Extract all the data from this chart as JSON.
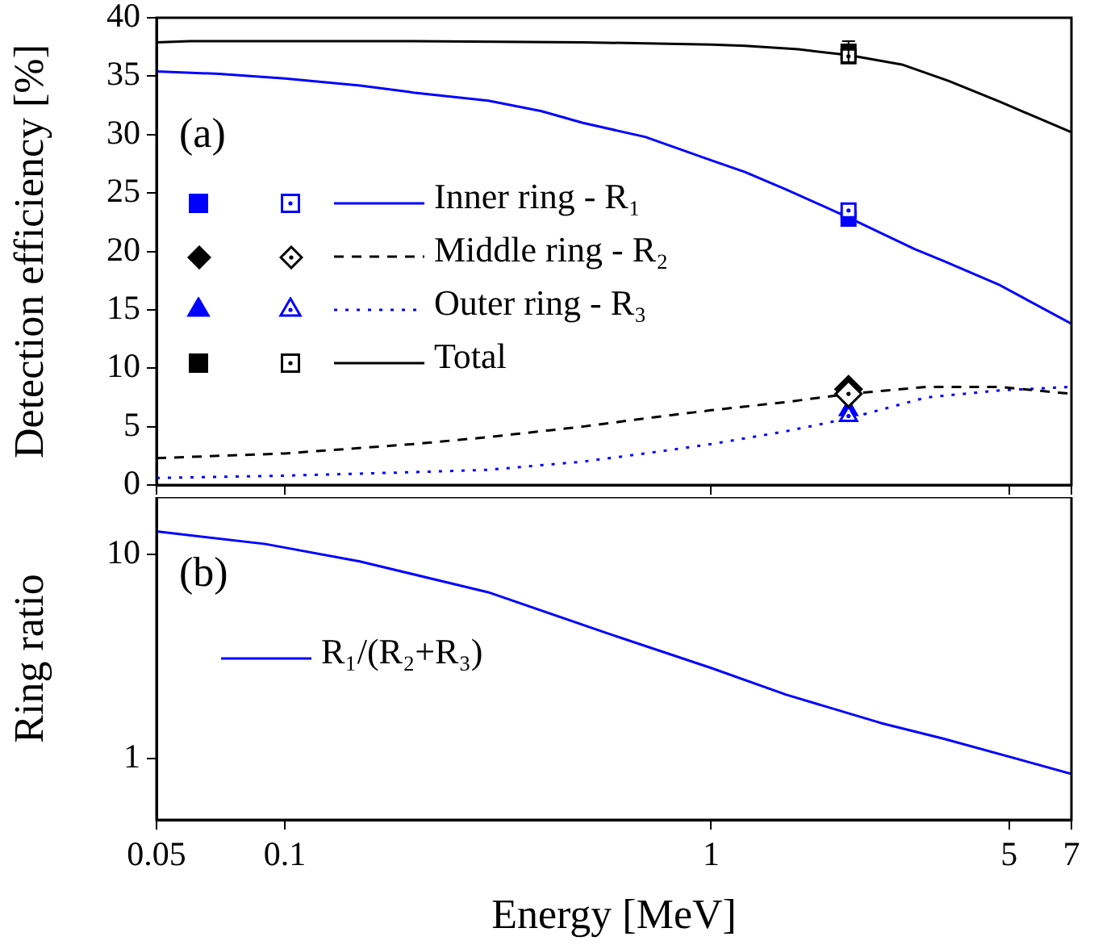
{
  "chart_data": [
    {
      "type": "line",
      "ylabel": "Detection efficiency [%]",
      "xlim": [
        0.05,
        7
      ],
      "xticks": [
        0.05,
        0.1,
        1,
        5,
        7
      ],
      "ylim": [
        0,
        40
      ],
      "yticks": [
        0,
        5,
        10,
        15,
        20,
        25,
        30,
        35,
        40
      ],
      "log": "x",
      "tick_labels": "y",
      "legend": "left",
      "annotations": [
        "(a)"
      ],
      "series": [
        {
          "name": "Inner ring - R₁",
          "type": "line",
          "color": "#0000ff",
          "line_style": "solid",
          "marker": "none",
          "x": [
            0.05,
            0.07,
            0.1,
            0.15,
            0.2,
            0.3,
            0.4,
            0.5,
            0.7,
            1,
            1.2,
            1.5,
            2.1,
            3,
            3.5,
            4.76,
            7
          ],
          "values": [
            35.4,
            35.2,
            34.8,
            34.2,
            33.6,
            32.9,
            32.0,
            31.0,
            29.8,
            27.8,
            26.8,
            25.3,
            22.9,
            20.2,
            19.2,
            17.1,
            13.8
          ]
        },
        {
          "name": "Middle ring - R₂",
          "type": "line",
          "color": "#000000",
          "line_style": "dashed",
          "marker": "none",
          "x": [
            0.05,
            0.1,
            0.2,
            0.3,
            0.5,
            0.7,
            1,
            1.5,
            2.1,
            3.2,
            4.76,
            7
          ],
          "values": [
            2.3,
            2.7,
            3.5,
            4.1,
            5.0,
            5.7,
            6.4,
            7.1,
            7.8,
            8.4,
            8.4,
            7.8
          ]
        },
        {
          "name": "Outer ring - R₃",
          "type": "line",
          "color": "#0000ff",
          "line_style": "dotted",
          "marker": "none",
          "x": [
            0.05,
            0.1,
            0.2,
            0.3,
            0.5,
            0.7,
            1,
            1.5,
            2.1,
            3.2,
            4.76,
            7
          ],
          "values": [
            0.6,
            0.8,
            1.1,
            1.3,
            2.0,
            2.7,
            3.5,
            4.6,
            5.7,
            7.5,
            8.1,
            8.4
          ]
        },
        {
          "name": "Total",
          "type": "line",
          "color": "#000000",
          "line_style": "solid",
          "marker": "none",
          "x": [
            0.05,
            0.06,
            0.1,
            0.2,
            0.5,
            1,
            1.2,
            1.6,
            2.1,
            2.8,
            3.6,
            4.76,
            7
          ],
          "values": [
            37.9,
            38.0,
            38.0,
            38.0,
            37.9,
            37.7,
            37.6,
            37.3,
            36.8,
            36.0,
            34.6,
            32.8,
            30.2
          ]
        },
        {
          "type": "scatter",
          "color": "#0000ff",
          "marker": "square",
          "x": [
            2.1
          ],
          "values": [
            22.8
          ]
        },
        {
          "type": "scatter",
          "color": "#000000",
          "marker": "diamond",
          "x": [
            2.1
          ],
          "values": [
            8.2
          ]
        },
        {
          "type": "scatter",
          "color": "#0000ff",
          "marker": "triangle",
          "x": [
            2.1
          ],
          "values": [
            6.4
          ]
        },
        {
          "type": "scatter",
          "color": "#000000",
          "marker": "square",
          "x": [
            2.1
          ],
          "values": [
            37.1
          ],
          "errors": [
            0.9
          ]
        },
        {
          "type": "scatter",
          "color": "#0000ff",
          "marker": "square",
          "x": [
            2.1
          ],
          "values": [
            23.5
          ]
        },
        {
          "type": "scatter",
          "color": "#000000",
          "marker": "diamond",
          "x": [
            2.1
          ],
          "values": [
            7.8
          ]
        },
        {
          "type": "scatter",
          "color": "#0000ff",
          "marker": "triangle",
          "x": [
            2.1
          ],
          "values": [
            5.9
          ]
        },
        {
          "type": "scatter",
          "color": "#000000",
          "marker": "square",
          "x": [
            2.1
          ],
          "values": [
            36.7
          ]
        }
      ]
    },
    {
      "type": "line",
      "xlabel": "Energy [MeV]",
      "ylabel": "Ring ratio",
      "xlim": [
        0.05,
        7
      ],
      "xticks": [
        0.05,
        0.1,
        1,
        5,
        7
      ],
      "ylim": [
        0.5,
        19
      ],
      "yticks": [
        1,
        10
      ],
      "log": "xy",
      "legend": "left",
      "annotations": [
        "(b)"
      ],
      "series": [
        {
          "name": "R₁/(R₂+R₃)",
          "type": "line",
          "color": "#0000ff",
          "line_style": "solid",
          "marker": "none",
          "x": [
            0.05,
            0.09,
            0.15,
            0.3,
            0.57,
            1,
            1.5,
            2.5,
            3.5,
            7
          ],
          "values": [
            12.9,
            11.2,
            9.2,
            6.5,
            4.1,
            2.77,
            2.05,
            1.49,
            1.25,
            0.84
          ]
        }
      ]
    }
  ]
}
